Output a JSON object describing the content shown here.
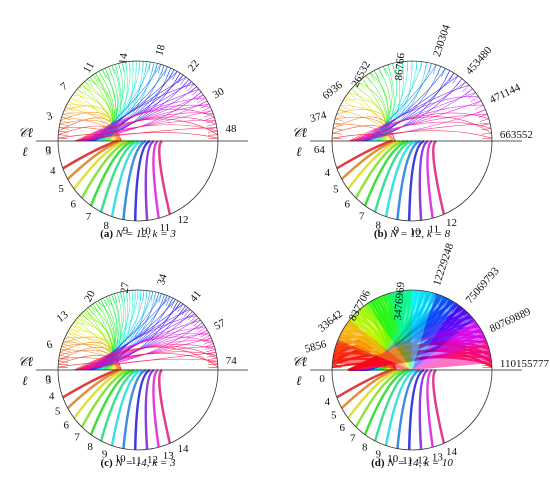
{
  "panels": [
    {
      "id": "a",
      "caption_tag": "(a)",
      "caption_text": "N = 12, k = 3",
      "line_label": "ℓ",
      "circle_label": "𝒞ℓ",
      "top_labels": [
        "0",
        "3",
        "7",
        "11",
        "14",
        "18",
        "22",
        "30",
        "48"
      ],
      "bottom_labels": [
        "3",
        "4",
        "5",
        "6",
        "7",
        "8",
        "9",
        "10",
        "11",
        "12"
      ]
    },
    {
      "id": "b",
      "caption_tag": "(b)",
      "caption_text": "N = 12, k = 8",
      "line_label": "ℓ",
      "circle_label": "𝒞ℓ",
      "top_labels": [
        "64",
        "374",
        "6936",
        "26532",
        "86766",
        "230304",
        "453480",
        "471144",
        "663552"
      ],
      "bottom_labels": [
        "4",
        "5",
        "6",
        "7",
        "8",
        "9",
        "10",
        "11",
        "12"
      ]
    },
    {
      "id": "c",
      "caption_tag": "(c)",
      "caption_text": "N = 14, k = 3",
      "line_label": "ℓ",
      "circle_label": "𝒞ℓ",
      "top_labels": [
        "0",
        "6",
        "13",
        "20",
        "27",
        "34",
        "41",
        "57",
        "74"
      ],
      "bottom_labels": [
        "3",
        "4",
        "5",
        "6",
        "7",
        "8",
        "9",
        "10",
        "11",
        "12",
        "13",
        "14"
      ]
    },
    {
      "id": "d",
      "caption_tag": "(d)",
      "caption_text": "N = 14, k = 10",
      "line_label": "ℓ",
      "circle_label": "𝒞ℓ",
      "top_labels": [
        "0",
        "5856",
        "33642",
        "837706",
        "3476969",
        "12229248",
        "75069793",
        "80769889",
        "110155777"
      ],
      "bottom_labels": [
        "4",
        "5",
        "6",
        "7",
        "8",
        "9",
        "10",
        "11",
        "12",
        "13",
        "14"
      ]
    }
  ]
}
